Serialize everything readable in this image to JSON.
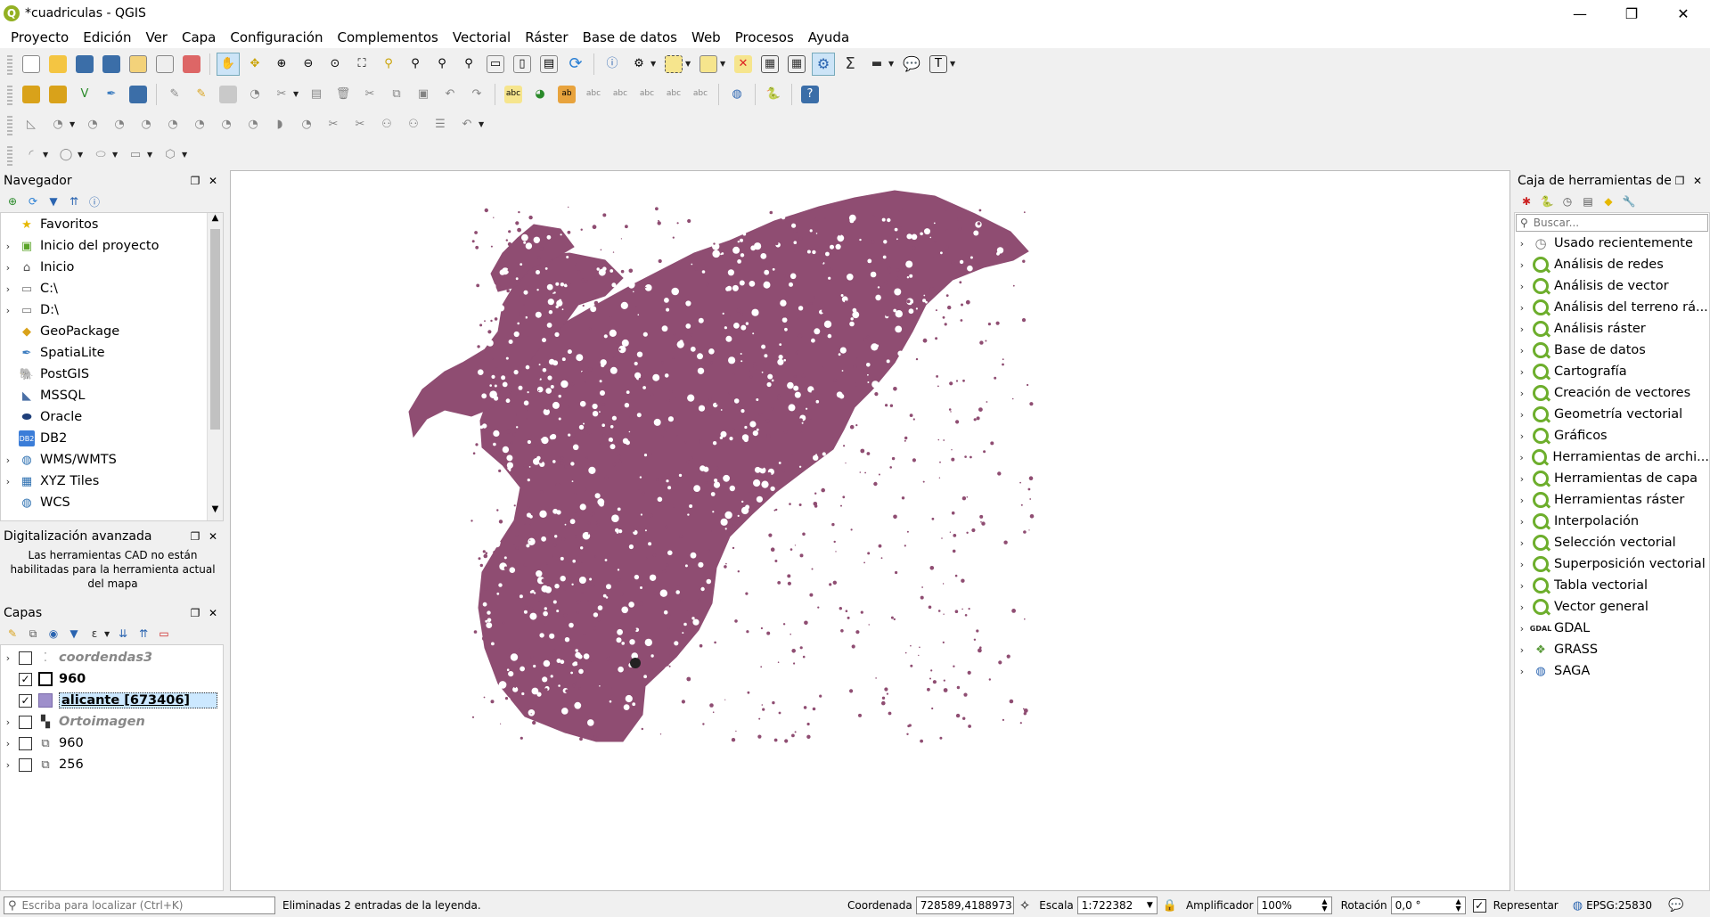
{
  "window": {
    "title": "*cuadriculas - QGIS",
    "min": "—",
    "max": "❐",
    "close": "✕"
  },
  "menu": [
    "Proyecto",
    "Edición",
    "Ver",
    "Capa",
    "Configuración",
    "Complementos",
    "Vectorial",
    "Ráster",
    "Base de datos",
    "Web",
    "Procesos",
    "Ayuda"
  ],
  "browser": {
    "title": "Navegador",
    "items": [
      {
        "label": "Favoritos",
        "icon": "star-icon",
        "glyph": "★",
        "color": "#e6b800",
        "arrow": ""
      },
      {
        "label": "Inicio del proyecto",
        "icon": "project-home-icon",
        "glyph": "▣",
        "color": "#5ca52a",
        "arrow": "›"
      },
      {
        "label": "Inicio",
        "icon": "home-icon",
        "glyph": "⌂",
        "color": "#555",
        "arrow": "›"
      },
      {
        "label": "C:\\",
        "icon": "folder-icon",
        "glyph": "▭",
        "color": "#777",
        "arrow": "›"
      },
      {
        "label": "D:\\",
        "icon": "folder-icon",
        "glyph": "▭",
        "color": "#777",
        "arrow": "›"
      },
      {
        "label": "GeoPackage",
        "icon": "geopackage-icon",
        "glyph": "◆",
        "color": "#d9a21a",
        "arrow": ""
      },
      {
        "label": "SpatiaLite",
        "icon": "spatialite-icon",
        "glyph": "✒",
        "color": "#3a7bbf",
        "arrow": ""
      },
      {
        "label": "PostGIS",
        "icon": "postgis-icon",
        "glyph": "🐘",
        "color": "#336791",
        "arrow": ""
      },
      {
        "label": "MSSQL",
        "icon": "mssql-icon",
        "glyph": "◣",
        "color": "#4a6fa5",
        "arrow": ""
      },
      {
        "label": "Oracle",
        "icon": "oracle-icon",
        "glyph": "⬬",
        "color": "#1f3f7a",
        "arrow": ""
      },
      {
        "label": "DB2",
        "icon": "db2-icon",
        "glyph": "DB2",
        "color": "#3b7dd8",
        "arrow": ""
      },
      {
        "label": "WMS/WMTS",
        "icon": "globe-icon",
        "glyph": "◍",
        "color": "#2c6fb0",
        "arrow": "›"
      },
      {
        "label": "XYZ Tiles",
        "icon": "xyz-tiles-icon",
        "glyph": "▦",
        "color": "#2c6fb0",
        "arrow": "›"
      },
      {
        "label": "WCS",
        "icon": "wcs-icon",
        "glyph": "◍",
        "color": "#2c6fb0",
        "arrow": ""
      }
    ]
  },
  "advdig": {
    "title": "Digitalización avanzada",
    "message": "Las herramientas CAD no están habilitadas para la herramienta actual del mapa"
  },
  "layers": {
    "title": "Capas",
    "items": [
      {
        "label": "coordendas3",
        "checked": false,
        "style": "italic",
        "icon": "points-icon",
        "glyph": "⁚",
        "color": "#999",
        "arrow": "›"
      },
      {
        "label": "960",
        "checked": true,
        "style": "bold",
        "icon": "polygon-outline-icon",
        "glyph": "",
        "color": "#000",
        "arrow": ""
      },
      {
        "label": "alicante [673406]",
        "checked": true,
        "style": "selected",
        "icon": "polygon-fill-icon",
        "glyph": "",
        "color": "#9e8fcb",
        "arrow": ""
      },
      {
        "label": "Ortoimagen",
        "checked": false,
        "style": "italic",
        "icon": "raster-icon",
        "glyph": "▚",
        "color": "#333",
        "arrow": "›"
      },
      {
        "label": "960",
        "checked": false,
        "style": "normal",
        "icon": "layer-group-icon",
        "glyph": "⧉",
        "color": "#555",
        "arrow": "›"
      },
      {
        "label": "256",
        "checked": false,
        "style": "normal",
        "icon": "layer-group-icon",
        "glyph": "⧉",
        "color": "#555",
        "arrow": "›"
      }
    ]
  },
  "toolbox": {
    "title": "Caja de herramientas de..",
    "search_placeholder": "Buscar...",
    "items": [
      {
        "label": "Usado recientemente",
        "icon": "clock-icon"
      },
      {
        "label": "Análisis de redes",
        "icon": "qgis-icon"
      },
      {
        "label": "Análisis de vector",
        "icon": "qgis-icon"
      },
      {
        "label": "Análisis del terreno rá...",
        "icon": "qgis-icon"
      },
      {
        "label": "Análisis ráster",
        "icon": "qgis-icon"
      },
      {
        "label": "Base de datos",
        "icon": "qgis-icon"
      },
      {
        "label": "Cartografía",
        "icon": "qgis-icon"
      },
      {
        "label": "Creación de vectores",
        "icon": "qgis-icon"
      },
      {
        "label": "Geometría vectorial",
        "icon": "qgis-icon"
      },
      {
        "label": "Gráficos",
        "icon": "qgis-icon"
      },
      {
        "label": "Herramientas de archi...",
        "icon": "qgis-icon"
      },
      {
        "label": "Herramientas de capa",
        "icon": "qgis-icon"
      },
      {
        "label": "Herramientas ráster",
        "icon": "qgis-icon"
      },
      {
        "label": "Interpolación",
        "icon": "qgis-icon"
      },
      {
        "label": "Selección vectorial",
        "icon": "qgis-icon"
      },
      {
        "label": "Superposición vectorial",
        "icon": "qgis-icon"
      },
      {
        "label": "Tabla vectorial",
        "icon": "qgis-icon"
      },
      {
        "label": "Vector general",
        "icon": "qgis-icon"
      },
      {
        "label": "GDAL",
        "icon": "gdal-icon"
      },
      {
        "label": "GRASS",
        "icon": "grass-icon"
      },
      {
        "label": "SAGA",
        "icon": "saga-icon"
      }
    ]
  },
  "status": {
    "locator_placeholder": "Escriba para localizar (Ctrl+K)",
    "message": "Eliminadas 2 entradas de la leyenda.",
    "coord_label": "Coordenada",
    "coord_value": "728589,4188973",
    "scale_label": "Escala",
    "scale_value": "1:722382",
    "magnifier_label": "Amplificador",
    "magnifier_value": "100%",
    "rotation_label": "Rotación",
    "rotation_value": "0,0 °",
    "render_label": "Representar",
    "crs": "EPSG:25830"
  },
  "colors": {
    "polygon": "#8f4d72",
    "accent": "#0078d7"
  }
}
